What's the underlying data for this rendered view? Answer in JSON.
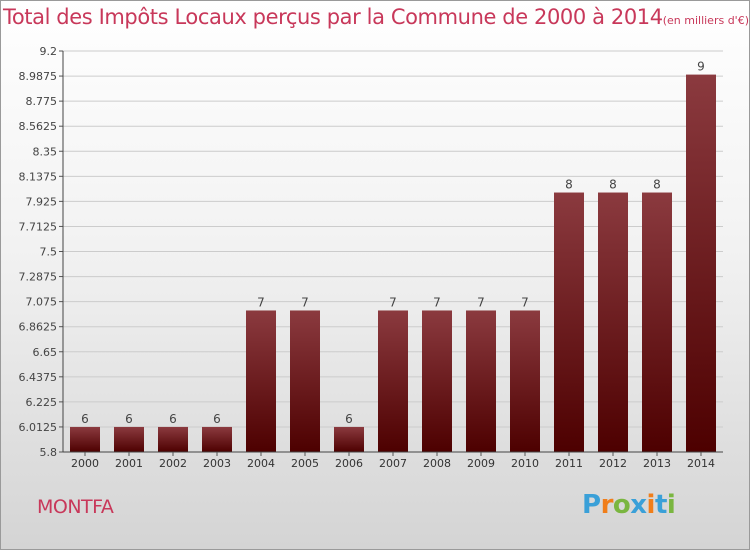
{
  "title": "Total des Impôts Locaux perçus par la Commune de 2000 à 2014",
  "title_unit": "(en milliers d'€)",
  "commune": "MONTFA",
  "logo": {
    "text": "Proxiti",
    "letters": [
      {
        "ch": "P",
        "color": "#3aa0d8"
      },
      {
        "ch": "r",
        "color": "#f07e1a"
      },
      {
        "ch": "o",
        "color": "#7ab640"
      },
      {
        "ch": "x",
        "color": "#3aa0d8"
      },
      {
        "ch": "i",
        "color": "#f07e1a"
      },
      {
        "ch": "t",
        "color": "#3aa0d8"
      },
      {
        "ch": "i",
        "color": "#7ab640"
      }
    ]
  },
  "colors": {
    "title": "#c8385a",
    "bar_top": "#8b3a3f",
    "bar_bottom": "#4d0000",
    "grid": "#cccccc"
  },
  "chart_data": {
    "type": "bar",
    "title": "Total des Impôts Locaux perçus par la Commune de 2000 à 2014",
    "xlabel": "",
    "ylabel": "",
    "categories": [
      "2000",
      "2001",
      "2002",
      "2003",
      "2004",
      "2005",
      "2006",
      "2007",
      "2008",
      "2009",
      "2010",
      "2011",
      "2012",
      "2013",
      "2014"
    ],
    "values": [
      6,
      6,
      6,
      6,
      7,
      7,
      6,
      7,
      7,
      7,
      7,
      8,
      8,
      8,
      9
    ],
    "value_labels": [
      "6",
      "6",
      "6",
      "6",
      "7",
      "7",
      "6",
      "7",
      "7",
      "7",
      "7",
      "8",
      "8",
      "8",
      "9"
    ],
    "bar_display_values": [
      6.0125,
      6.0125,
      6.0125,
      6.0125,
      7,
      7,
      6.0125,
      7,
      7,
      7,
      7,
      8,
      8,
      8,
      9
    ],
    "ylim": [
      5.8,
      9.2
    ],
    "yticks": [
      5.8,
      6.0125,
      6.225,
      6.4375,
      6.65,
      6.8625,
      7.075,
      7.2875,
      7.5,
      7.7125,
      7.925,
      8.1375,
      8.35,
      8.5625,
      8.775,
      8.9875,
      9.2
    ],
    "ytick_labels": [
      "5.8",
      "6.0125",
      "6.225",
      "6.4375",
      "6.65",
      "6.8625",
      "7.075",
      "7.2875",
      "7.5",
      "7.7125",
      "7.925",
      "8.1375",
      "8.35",
      "8.5625",
      "8.775",
      "8.9875",
      "9.2"
    ],
    "grid": true
  }
}
